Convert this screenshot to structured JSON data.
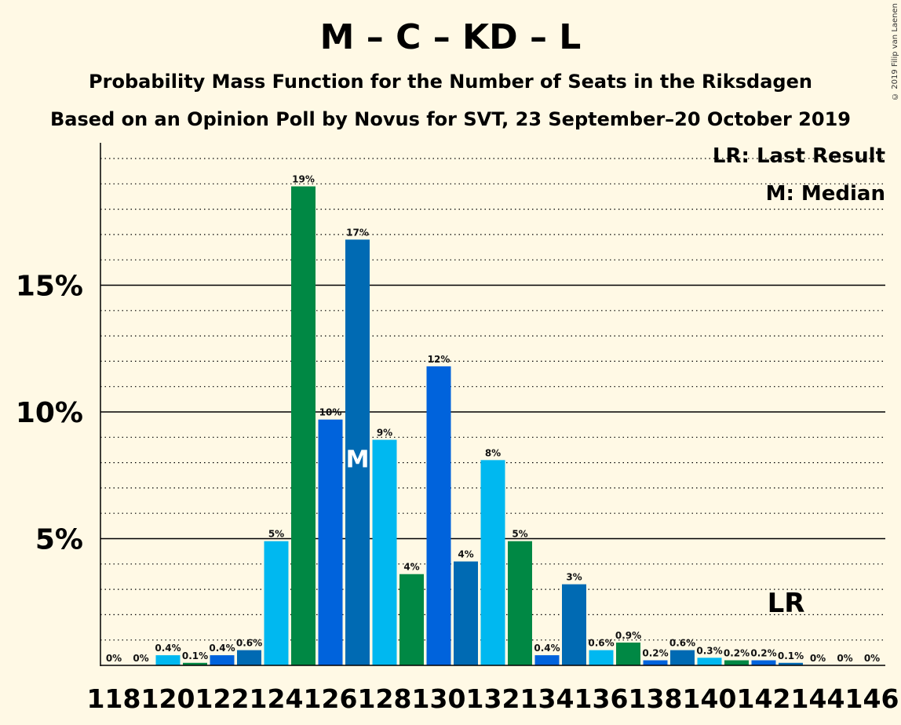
{
  "title": "M – C – KD – L",
  "subtitle1": "Probability Mass Function for the Number of Seats in the Riksdagen",
  "subtitle2": "Based on an Opinion Poll by Novus for SVT, 23 September–20 October 2019",
  "copyright": "© 2019 Filip van Laenen",
  "legend": {
    "last_result": "LR: Last Result",
    "median": "M: Median"
  },
  "markers": {
    "median_label": "M",
    "last_result_label": "LR"
  },
  "colors": {
    "background": "#FFF9E5",
    "light_blue": "#00B8F0",
    "green": "#008844",
    "blue": "#0063DC",
    "mid_blue": "#006AB3"
  },
  "chart_data": {
    "type": "bar",
    "x": [
      118,
      119,
      120,
      121,
      122,
      123,
      124,
      125,
      126,
      127,
      128,
      129,
      130,
      131,
      132,
      133,
      134,
      135,
      136,
      137,
      138,
      139,
      140,
      141,
      142,
      143,
      144,
      145,
      146
    ],
    "values": [
      0,
      0,
      0.4,
      0.1,
      0.4,
      0.6,
      4.9,
      18.9,
      9.7,
      16.8,
      8.9,
      3.6,
      11.8,
      4.1,
      8.1,
      4.9,
      0.4,
      3.2,
      0.6,
      0.9,
      0.2,
      0.6,
      0.3,
      0.2,
      0.2,
      0.1,
      0,
      0,
      0
    ],
    "data_labels": [
      "0%",
      "0%",
      "0.4%",
      "0.1%",
      "0.4%",
      "0.6%",
      "5%",
      "19%",
      "10%",
      "17%",
      "9%",
      "4%",
      "12%",
      "4%",
      "8%",
      "5%",
      "0.4%",
      "3%",
      "0.6%",
      "0.9%",
      "0.2%",
      "0.6%",
      "0.3%",
      "0.2%",
      "0.2%",
      "0.1%",
      "0%",
      "0%",
      "0%"
    ],
    "bar_colors": [
      "#00B8F0",
      "#008844",
      "#00B8F0",
      "#008844",
      "#0063DC",
      "#006AB3",
      "#00B8F0",
      "#008844",
      "#0063DC",
      "#006AB3",
      "#00B8F0",
      "#008844",
      "#0063DC",
      "#006AB3",
      "#00B8F0",
      "#008844",
      "#0063DC",
      "#006AB3",
      "#00B8F0",
      "#008844",
      "#0063DC",
      "#006AB3",
      "#00B8F0",
      "#008844",
      "#0063DC",
      "#006AB3",
      "#00B8F0",
      "#008844",
      "#0063DC"
    ],
    "x_tick_labels": [
      "118",
      "120",
      "122",
      "124",
      "126",
      "128",
      "130",
      "132",
      "134",
      "136",
      "138",
      "140",
      "142",
      "144",
      "146"
    ],
    "y_tick_labels": [
      "5%",
      "10%",
      "15%"
    ],
    "y_ticks": [
      5,
      10,
      15
    ],
    "ylim": [
      0,
      20.7
    ],
    "median_seat": 127,
    "last_result_seat": 143,
    "grid": "dotted minor every 1%, solid major every 5%"
  }
}
